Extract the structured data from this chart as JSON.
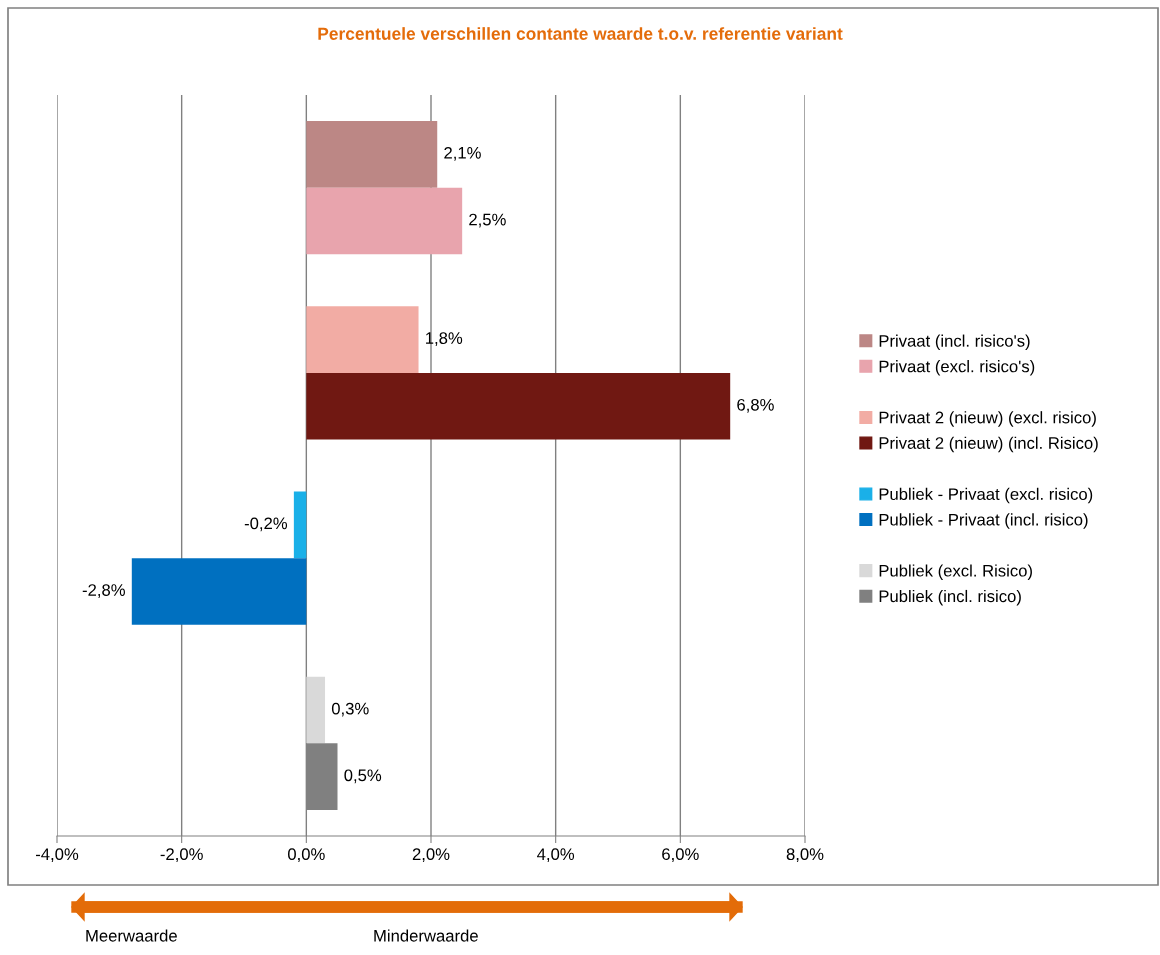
{
  "chart_data": {
    "type": "bar",
    "orientation": "horizontal",
    "title": "Percentuele verschillen contante waarde t.o.v. referentie variant",
    "categories": [
      null,
      null,
      null,
      null
    ],
    "series": [
      {
        "name": "Privaat (incl. risico's)",
        "color": "#bc8785",
        "values": [
          2.1,
          null,
          null,
          null
        ],
        "value_labels": [
          "2,1%",
          null,
          null,
          null
        ]
      },
      {
        "name": "Privaat (excl. risico's)",
        "color": "#e8a4ad",
        "values": [
          2.5,
          null,
          null,
          null
        ],
        "value_labels": [
          "2,5%",
          null,
          null,
          null
        ]
      },
      {
        "name": "Privaat 2 (nieuw) (excl. risico)",
        "color": "#f2aca4",
        "values": [
          null,
          1.8,
          null,
          null
        ],
        "value_labels": [
          null,
          "1,8%",
          null,
          null
        ]
      },
      {
        "name": "Privaat 2 (nieuw) (incl. Risico)",
        "color": "#701812",
        "values": [
          null,
          6.8,
          null,
          null
        ],
        "value_labels": [
          null,
          "6,8%",
          null,
          null
        ]
      },
      {
        "name": "Publiek - Privaat (excl. risico)",
        "color": "#1ab0e8",
        "values": [
          null,
          null,
          -0.2,
          null
        ],
        "value_labels": [
          null,
          null,
          "-0,2%",
          null
        ]
      },
      {
        "name": "Publiek - Privaat (incl. risico)",
        "color": "#0070c0",
        "values": [
          null,
          null,
          -2.8,
          null
        ],
        "value_labels": [
          null,
          null,
          "-2,8%",
          null
        ]
      },
      {
        "name": "Publiek (excl. Risico)",
        "color": "#d9d9d9",
        "values": [
          null,
          null,
          null,
          0.3
        ],
        "value_labels": [
          null,
          null,
          null,
          "0,3%"
        ]
      },
      {
        "name": "Publiek (incl. risico)",
        "color": "#808080",
        "values": [
          null,
          null,
          null,
          0.5
        ],
        "value_labels": [
          null,
          null,
          null,
          "0,5%"
        ]
      }
    ],
    "xlim": [
      -4,
      8
    ],
    "xticks": [
      {
        "value": -4,
        "label": "-4,0%"
      },
      {
        "value": -2,
        "label": "-2,0%"
      },
      {
        "value": 0,
        "label": "0,0%"
      },
      {
        "value": 2,
        "label": "2,0%"
      },
      {
        "value": 4,
        "label": "4,0%"
      },
      {
        "value": 6,
        "label": "6,0%"
      },
      {
        "value": 8,
        "label": "8,0%"
      }
    ],
    "grid": "x",
    "legend": "right",
    "annotations": [
      "Meerwaarde",
      "Minderwaarde"
    ]
  }
}
